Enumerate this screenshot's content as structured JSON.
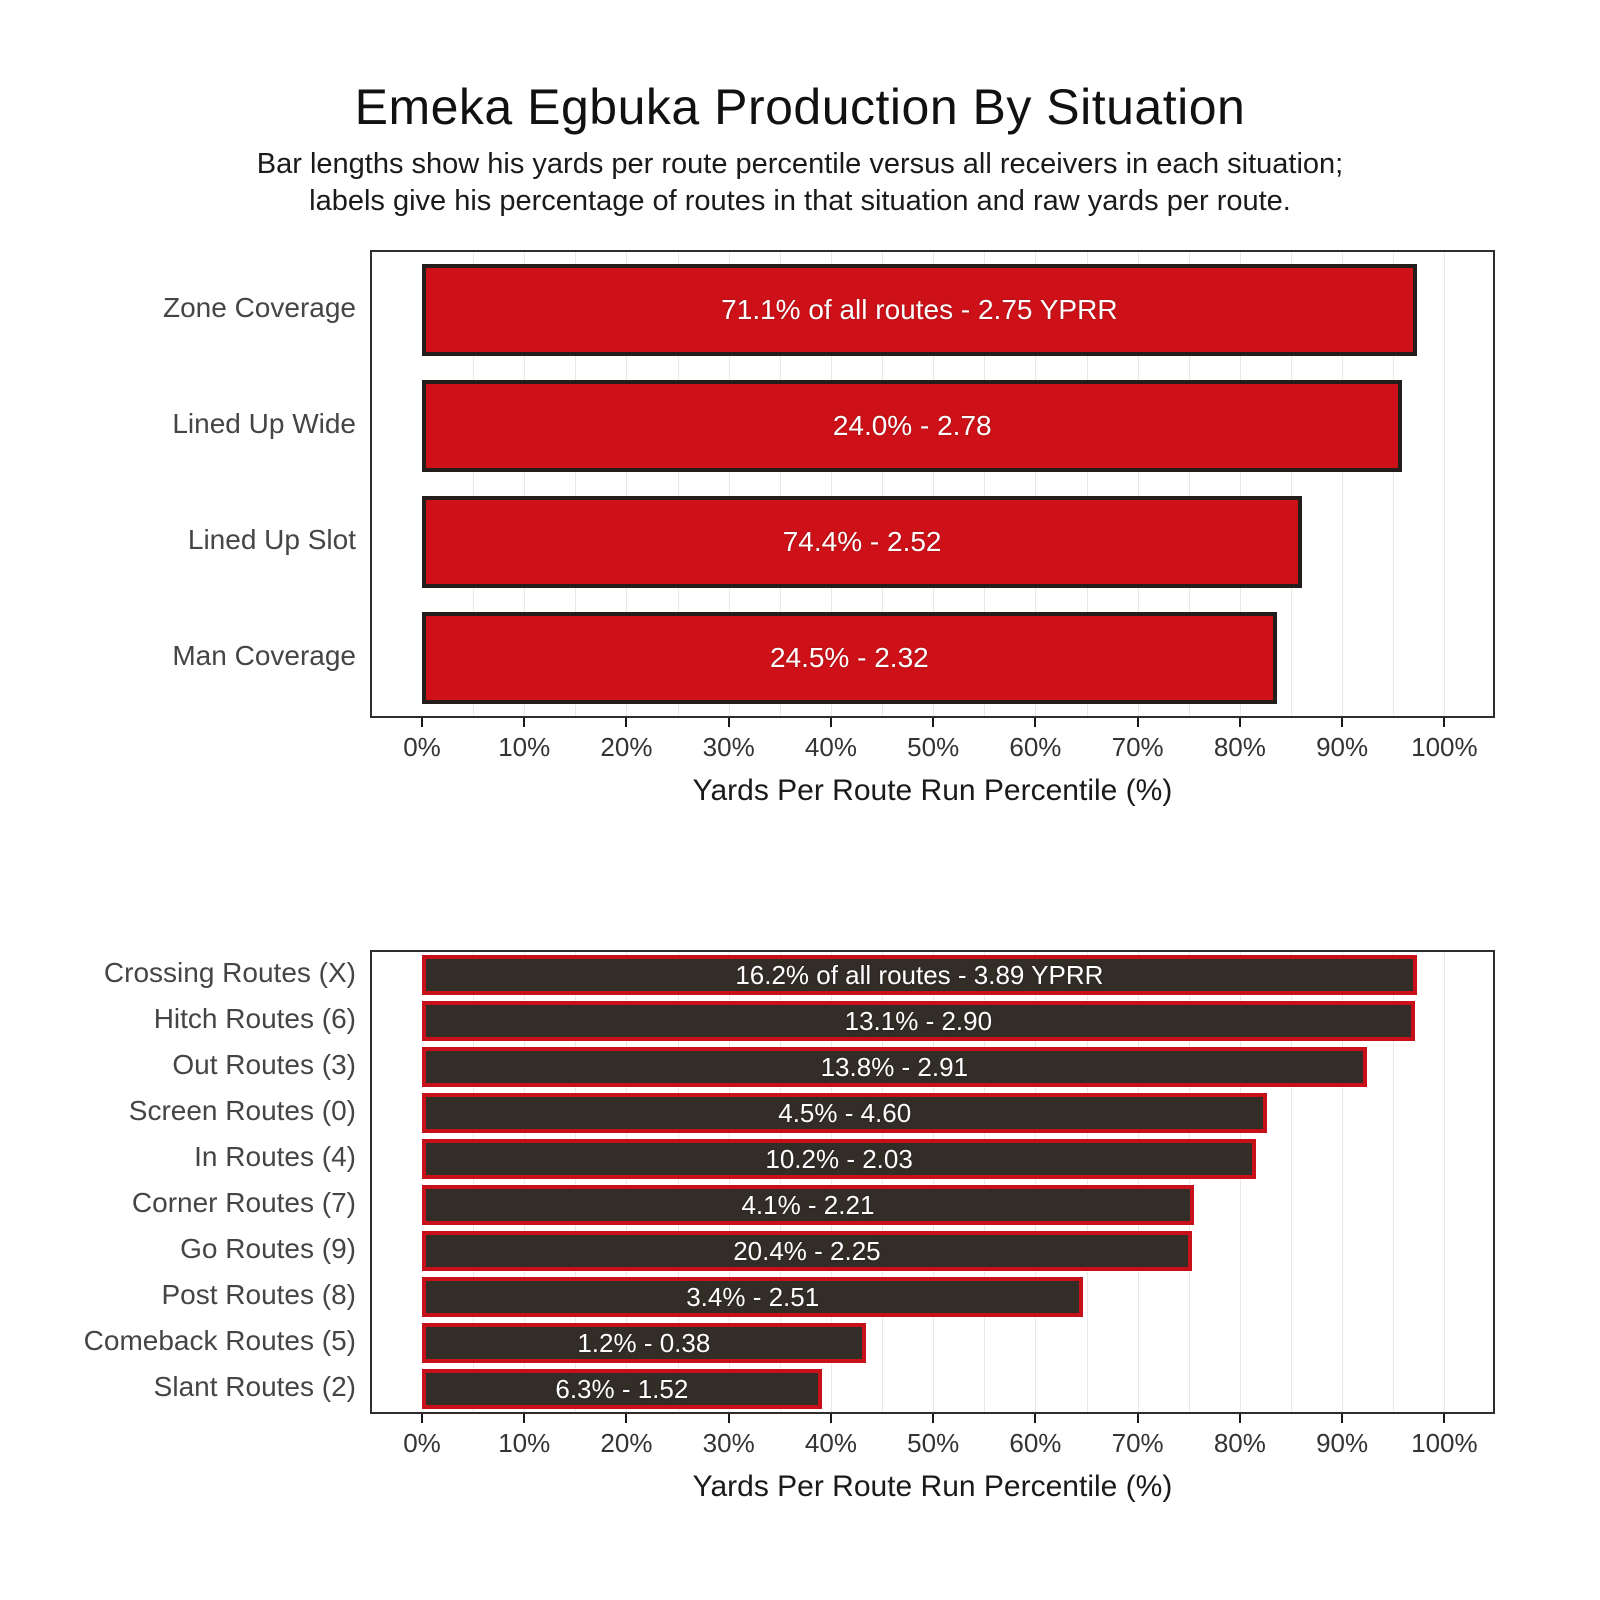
{
  "header": {
    "title": "Emeka Egbuka Production By Situation",
    "subtitle_line1": "Bar lengths show his yards per route percentile versus all receivers in each situation;",
    "subtitle_line2": "labels give his percentage of routes in that situation and raw yards per route."
  },
  "colors": {
    "situation_bar_fill": "#ce1118",
    "situation_bar_border": "#231e1b",
    "route_bar_fill": "#332d28",
    "route_bar_border": "#c8101a",
    "gridline": "#e9e9e9",
    "panel_border": "#2d2d2d",
    "bar_label_text": "#ffffff"
  },
  "chart_data": [
    {
      "type": "bar",
      "orientation": "horizontal",
      "name": "production-by-situation",
      "xlabel": "Yards Per Route Run Percentile (%)",
      "xlim": [
        0,
        100
      ],
      "x_tick_labels": [
        "0%",
        "10%",
        "20%",
        "30%",
        "40%",
        "50%",
        "60%",
        "70%",
        "80%",
        "90%",
        "100%"
      ],
      "grid": "minor-5pct",
      "legend": "none",
      "categories": [
        "Zone Coverage",
        "Lined Up Wide",
        "Lined Up Slot",
        "Man Coverage"
      ],
      "values": [
        97.3,
        95.9,
        86.1,
        83.6
      ],
      "labels": [
        "71.1% of all routes - 2.75 YPRR",
        "24.0% - 2.78",
        "74.4% - 2.52",
        "24.5% - 2.32"
      ]
    },
    {
      "type": "bar",
      "orientation": "horizontal",
      "name": "production-by-route",
      "xlabel": "Yards Per Route Run Percentile (%)",
      "xlim": [
        0,
        100
      ],
      "x_tick_labels": [
        "0%",
        "10%",
        "20%",
        "30%",
        "40%",
        "50%",
        "60%",
        "70%",
        "80%",
        "90%",
        "100%"
      ],
      "grid": "minor-5pct",
      "legend": "none",
      "categories": [
        "Crossing Routes (X)",
        "Hitch Routes (6)",
        "Out Routes (3)",
        "Screen Routes (0)",
        "In Routes (4)",
        "Corner Routes (7)",
        "Go Routes (9)",
        "Post Routes (8)",
        "Comeback Routes (5)",
        "Slant Routes (2)"
      ],
      "values": [
        97.3,
        97.1,
        92.4,
        82.7,
        81.6,
        75.5,
        75.3,
        64.7,
        43.4,
        39.1
      ],
      "labels": [
        "16.2% of all routes - 3.89 YPRR",
        "13.1% - 2.90",
        "13.8% - 2.91",
        "4.5% - 4.60",
        "10.2% - 2.03",
        "4.1% - 2.21",
        "20.4% - 2.25",
        "3.4% - 2.51",
        "1.2% - 0.38",
        "6.3% - 1.52"
      ]
    }
  ]
}
